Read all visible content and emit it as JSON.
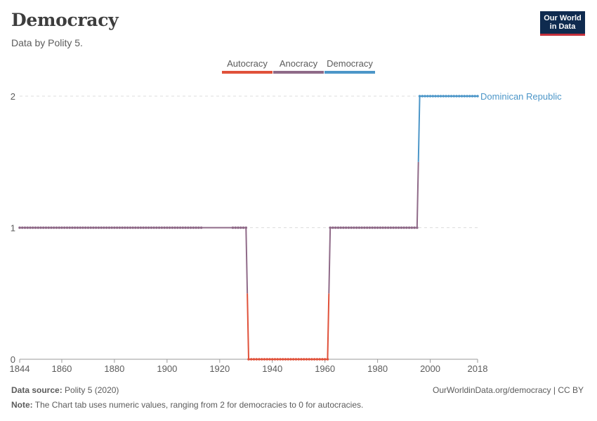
{
  "header": {
    "title": "Democracy",
    "subtitle": "Data by Polity 5."
  },
  "logo": {
    "line1": "Our World",
    "line2": "in Data"
  },
  "footer": {
    "source_label": "Data source:",
    "source_value": "Polity 5 (2020)",
    "citation": "OurWorldinData.org/democracy | CC BY",
    "note_label": "Note:",
    "note_value": "The Chart tab uses numeric values, ranging from 2 for democracies to 0 for autocracies."
  },
  "chart_data": {
    "type": "line",
    "title": "Democracy",
    "subtitle": "Data by Polity 5.",
    "xlabel": "",
    "ylabel": "",
    "xlim": [
      1844,
      2018
    ],
    "ylim": [
      0,
      2
    ],
    "x_ticks": [
      1844,
      1860,
      1880,
      1900,
      1920,
      1940,
      1960,
      1980,
      2000,
      2018
    ],
    "y_ticks": [
      0,
      1,
      2
    ],
    "grid": "horizontal dashed",
    "legend": {
      "placement": "top",
      "items": [
        {
          "label": "Autocracy",
          "color": "#e0513a"
        },
        {
          "label": "Anocracy",
          "color": "#8f6a88"
        },
        {
          "label": "Democracy",
          "color": "#4c96c8"
        }
      ]
    },
    "colors": {
      "0": "#e0513a",
      "1": "#8f6a88",
      "2": "#4c96c8"
    },
    "series": [
      {
        "name": "Dominican Republic",
        "points": [
          [
            1844,
            1
          ],
          [
            1913,
            1
          ],
          [
            1925,
            1
          ],
          [
            1930,
            1
          ],
          [
            1931,
            0
          ],
          [
            1961,
            0
          ],
          [
            1962,
            1
          ],
          [
            1995,
            1
          ],
          [
            1996,
            2
          ],
          [
            2018,
            2
          ]
        ]
      }
    ]
  }
}
